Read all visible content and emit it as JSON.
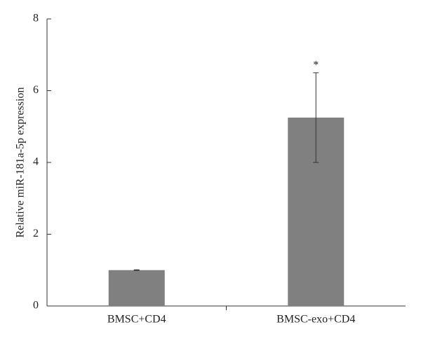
{
  "chart_data": {
    "type": "bar",
    "y_label": "Relative miR-181a-5p expression",
    "categories": [
      "BMSC+CD4",
      "BMSC-exo+CD4"
    ],
    "values": [
      1.0,
      5.25
    ],
    "errors": [
      0.01,
      1.25
    ],
    "color": "#808080",
    "annotations": [
      {
        "text": "*",
        "x": "BMSC-exo+CD4"
      }
    ],
    "ylim": [
      0,
      8
    ],
    "yticks": [
      0,
      2,
      4,
      6,
      8
    ],
    "grid": false
  }
}
